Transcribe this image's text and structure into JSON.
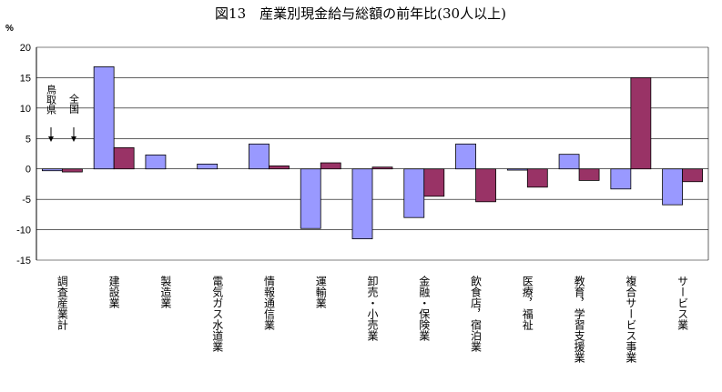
{
  "chart_data": {
    "type": "bar",
    "title": "図13　産業別現金給与総額の前年比(30人以上)",
    "ylabel": "%",
    "ylim": [
      -15,
      20
    ],
    "yticks": [
      20,
      15,
      10,
      5,
      0,
      -5,
      -10,
      -15
    ],
    "grid": true,
    "categories": [
      "調査産業計",
      "建設業",
      "製造業",
      "電気ガス水道業",
      "情報通信業",
      "運輸業",
      "卸売・小売業",
      "金融・保険業",
      "飲食店，宿泊業",
      "医療，福祉",
      "教育，学習支援業",
      "複合サービス事業",
      "サービス業"
    ],
    "series": [
      {
        "name": "鳥取県",
        "color": "#9999ff",
        "values": [
          -0.3,
          16.8,
          2.3,
          0.8,
          4.1,
          -9.8,
          -11.5,
          -8.0,
          4.1,
          -0.2,
          2.4,
          -3.3,
          -5.9
        ]
      },
      {
        "name": "全国",
        "color": "#993366",
        "values": [
          -0.5,
          3.5,
          0.0,
          0.0,
          0.5,
          1.0,
          0.3,
          -4.5,
          -5.4,
          -3.0,
          -1.9,
          15.0,
          -2.1
        ]
      }
    ],
    "annotations": [
      {
        "label": "鳥取県",
        "points_to": "鳥取県"
      },
      {
        "label": "全国",
        "points_to": "全国"
      }
    ]
  }
}
